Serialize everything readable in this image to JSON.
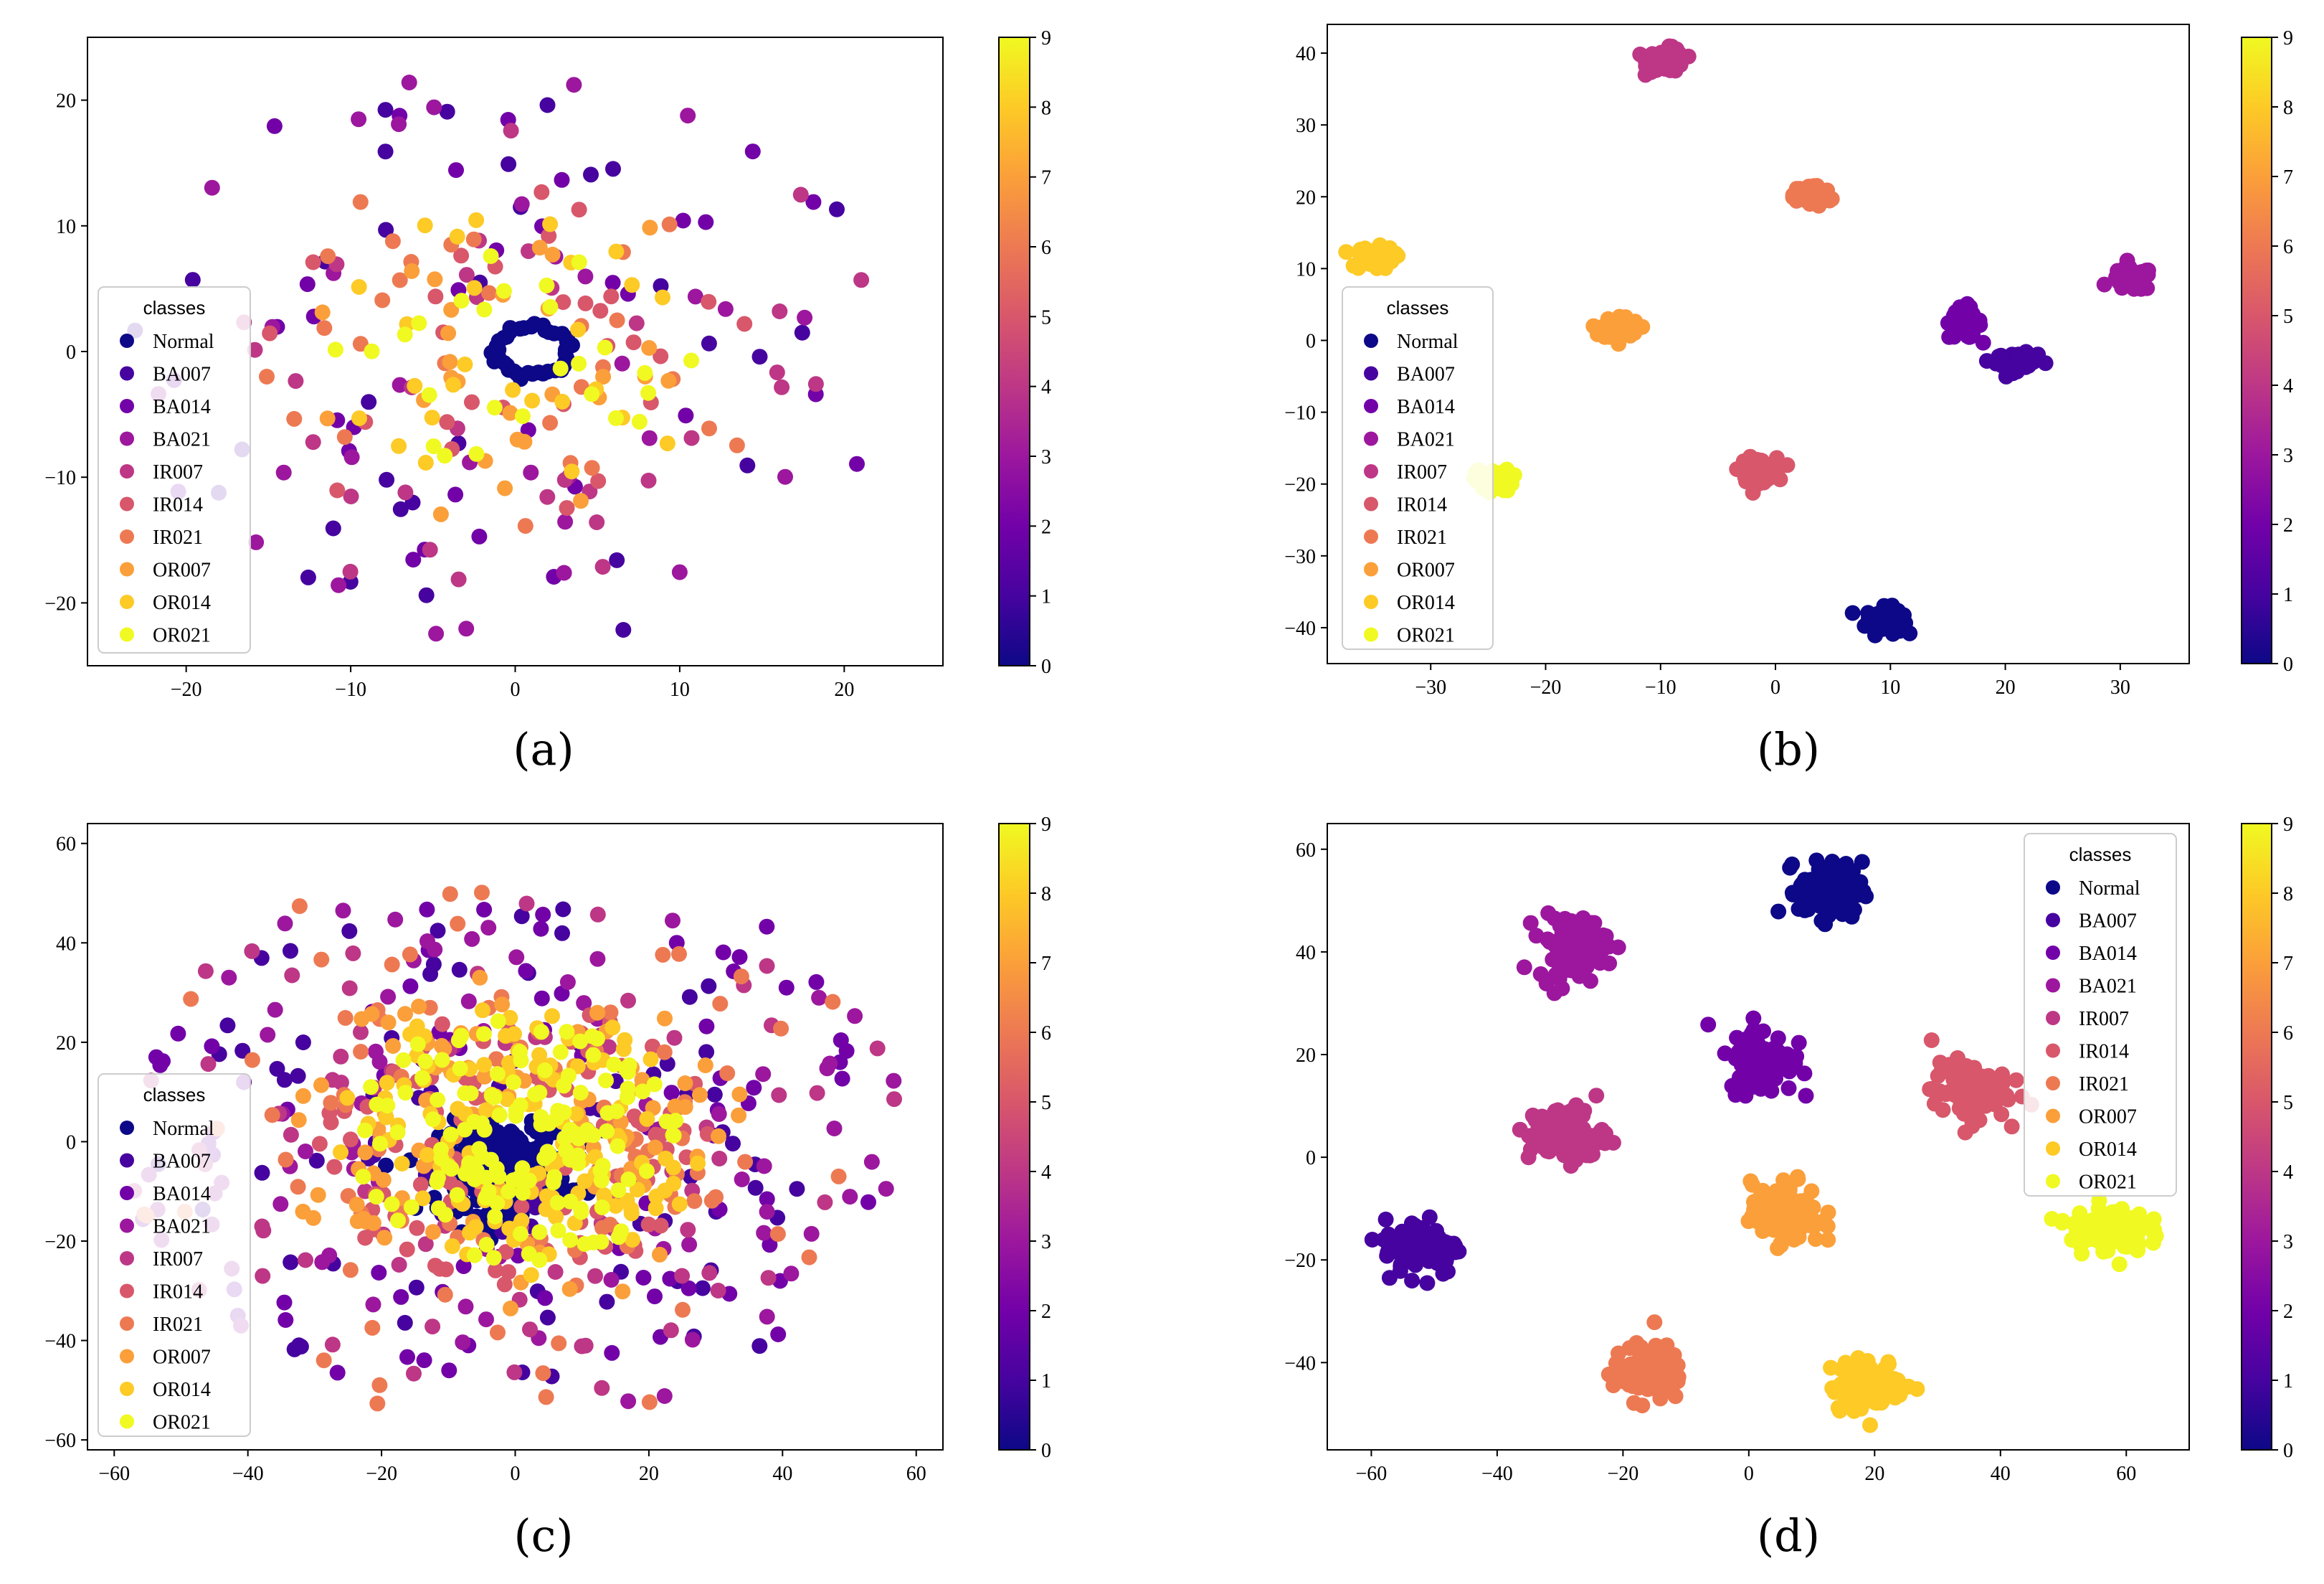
{
  "colors": {
    "cmap": [
      "#0d0887",
      "#46039f",
      "#7201a8",
      "#9c179e",
      "#bd3786",
      "#d8576b",
      "#ed7953",
      "#fb9f3a",
      "#fdca26",
      "#f0f921"
    ],
    "axis": "#000000",
    "background": "#ffffff"
  },
  "legend": {
    "title": "classes",
    "entries": [
      "Normal",
      "BA007",
      "BA014",
      "BA021",
      "IR007",
      "IR014",
      "IR021",
      "OR007",
      "OR014",
      "OR021"
    ]
  },
  "colorbar": {
    "min": 0,
    "max": 9,
    "ticks": [
      "0",
      "1",
      "2",
      "3",
      "4",
      "5",
      "6",
      "7",
      "8",
      "9"
    ]
  },
  "chart_data": [
    {
      "type": "scatter",
      "panel_label": "(a)",
      "title": "",
      "xlabel": "",
      "ylabel": "",
      "xlim": [
        -26,
        26
      ],
      "ylim": [
        -25,
        25
      ],
      "xticks": [
        -20,
        -10,
        0,
        10,
        20
      ],
      "yticks": [
        -20,
        -10,
        0,
        10,
        20
      ],
      "legend_position": "center-left",
      "series": [
        {
          "name": "Normal",
          "class": 0,
          "shape": "ring",
          "cx": 1.0,
          "cy": 0.0,
          "rx": 2.2,
          "ry": 2.0,
          "n": 40
        },
        {
          "name": "BA007",
          "class": 1,
          "shape": "scatter",
          "rmin": 6,
          "rmax": 24,
          "n": 32
        },
        {
          "name": "BA014",
          "class": 2,
          "shape": "scatter",
          "rmin": 6,
          "rmax": 24,
          "n": 32
        },
        {
          "name": "BA021",
          "class": 3,
          "shape": "scatter",
          "rmin": 6,
          "rmax": 24,
          "n": 32
        },
        {
          "name": "IR007",
          "class": 4,
          "shape": "scatter",
          "rmin": 5,
          "rmax": 22,
          "n": 32
        },
        {
          "name": "IR014",
          "class": 5,
          "shape": "scatter",
          "rmin": 4,
          "rmax": 16,
          "n": 28
        },
        {
          "name": "IR021",
          "class": 6,
          "shape": "scatter",
          "rmin": 4,
          "rmax": 16,
          "n": 28
        },
        {
          "name": "OR007",
          "class": 7,
          "shape": "scatter",
          "rmin": 4,
          "rmax": 15,
          "n": 28
        },
        {
          "name": "OR014",
          "class": 8,
          "shape": "scatter",
          "rmin": 3,
          "rmax": 12,
          "n": 26
        },
        {
          "name": "OR021",
          "class": 9,
          "shape": "scatter",
          "rmin": 3,
          "rmax": 11,
          "n": 26
        }
      ]
    },
    {
      "type": "scatter",
      "panel_label": "(b)",
      "title": "",
      "xlabel": "",
      "ylabel": "",
      "xlim": [
        -39,
        36
      ],
      "ylim": [
        -45,
        44
      ],
      "xticks": [
        -30,
        -20,
        -10,
        0,
        10,
        20,
        30
      ],
      "yticks": [
        -40,
        -30,
        -20,
        -10,
        0,
        10,
        20,
        30,
        40
      ],
      "legend_position": "lower-left",
      "series": [
        {
          "name": "Normal",
          "class": 0,
          "shape": "cluster",
          "cx": 9.5,
          "cy": -39,
          "rx": 1.6,
          "ry": 1.8,
          "n": 70
        },
        {
          "name": "BA007",
          "class": 1,
          "shape": "cluster",
          "cx": 21,
          "cy": -3,
          "rx": 1.8,
          "ry": 1.2,
          "n": 70
        },
        {
          "name": "BA014",
          "class": 2,
          "shape": "cluster",
          "cx": 16.5,
          "cy": 2.5,
          "rx": 1.4,
          "ry": 2.2,
          "n": 70
        },
        {
          "name": "BA021",
          "class": 3,
          "shape": "cluster",
          "cx": 31,
          "cy": 8.5,
          "rx": 1.8,
          "ry": 1.6,
          "n": 70
        },
        {
          "name": "IR007",
          "class": 4,
          "shape": "cluster",
          "cx": -9.5,
          "cy": 39,
          "rx": 1.6,
          "ry": 1.6,
          "n": 70
        },
        {
          "name": "IR014",
          "class": 5,
          "shape": "cluster",
          "cx": -1.5,
          "cy": -18,
          "rx": 1.6,
          "ry": 1.6,
          "n": 70
        },
        {
          "name": "IR021",
          "class": 6,
          "shape": "cluster",
          "cx": 3.2,
          "cy": 20.2,
          "rx": 1.6,
          "ry": 1.6,
          "n": 70
        },
        {
          "name": "OR007",
          "class": 7,
          "shape": "cluster",
          "cx": -13.5,
          "cy": 1.8,
          "rx": 1.6,
          "ry": 1.6,
          "n": 70
        },
        {
          "name": "OR014",
          "class": 8,
          "shape": "cluster",
          "cx": -35,
          "cy": 11.5,
          "rx": 1.8,
          "ry": 1.5,
          "n": 70
        },
        {
          "name": "OR021",
          "class": 9,
          "shape": "cluster",
          "cx": -24.5,
          "cy": -19.5,
          "rx": 1.6,
          "ry": 1.5,
          "n": 70
        }
      ]
    },
    {
      "type": "scatter",
      "panel_label": "(c)",
      "title": "",
      "xlabel": "",
      "ylabel": "",
      "xlim": [
        -64,
        64
      ],
      "ylim": [
        -62,
        64
      ],
      "xticks": [
        -60,
        -40,
        -20,
        0,
        20,
        40,
        60
      ],
      "yticks": [
        -60,
        -40,
        -20,
        0,
        20,
        40,
        60
      ],
      "legend_position": "lower-left",
      "series": [
        {
          "name": "Normal",
          "class": 0,
          "shape": "cluster",
          "cx": -1.5,
          "cy": -5.5,
          "rx": 9.5,
          "ry": 9,
          "n": 260
        },
        {
          "name": "BA007",
          "class": 1,
          "shape": "scatter",
          "rmin": 10,
          "rmax": 56,
          "n": 80
        },
        {
          "name": "BA014",
          "class": 2,
          "shape": "scatter",
          "rmin": 20,
          "rmax": 58,
          "n": 80
        },
        {
          "name": "BA021",
          "class": 3,
          "shape": "scatter",
          "rmin": 20,
          "rmax": 58,
          "n": 80
        },
        {
          "name": "IR007",
          "class": 4,
          "shape": "scatter",
          "rmin": 20,
          "rmax": 58,
          "n": 70
        },
        {
          "name": "IR014",
          "class": 5,
          "shape": "scatter",
          "rmin": 8,
          "rmax": 30,
          "n": 110
        },
        {
          "name": "IR021",
          "class": 6,
          "shape": "scatter",
          "rmin": 15,
          "rmax": 58,
          "n": 90
        },
        {
          "name": "OR007",
          "class": 7,
          "shape": "scatter",
          "rmin": 8,
          "rmax": 35,
          "n": 100
        },
        {
          "name": "OR014",
          "class": 8,
          "shape": "scatter",
          "rmin": 6,
          "rmax": 28,
          "n": 120
        },
        {
          "name": "OR021",
          "class": 9,
          "shape": "scatter",
          "rmin": 5,
          "rmax": 25,
          "n": 150
        }
      ]
    },
    {
      "type": "scatter",
      "panel_label": "(d)",
      "title": "",
      "xlabel": "",
      "ylabel": "",
      "xlim": [
        -67,
        70
      ],
      "ylim": [
        -57,
        65
      ],
      "xticks": [
        -60,
        -40,
        -20,
        0,
        20,
        40,
        60
      ],
      "yticks": [
        -40,
        -20,
        0,
        20,
        40,
        60
      ],
      "legend_position": "upper-right",
      "series": [
        {
          "name": "Normal",
          "class": 0,
          "shape": "cluster",
          "cx": 13,
          "cy": 52,
          "rx": 5,
          "ry": 5.5,
          "n": 110
        },
        {
          "name": "BA007",
          "class": 1,
          "shape": "cluster",
          "cx": -52,
          "cy": -17.5,
          "rx": 6,
          "ry": 5.5,
          "n": 110
        },
        {
          "name": "BA014",
          "class": 2,
          "shape": "cluster",
          "cx": 2,
          "cy": 19,
          "rx": 5,
          "ry": 6.5,
          "n": 110
        },
        {
          "name": "BA021",
          "class": 3,
          "shape": "cluster",
          "cx": -28,
          "cy": 41,
          "rx": 5.5,
          "ry": 6,
          "n": 110
        },
        {
          "name": "IR007",
          "class": 4,
          "shape": "cluster",
          "cx": -29,
          "cy": 4.5,
          "rx": 6,
          "ry": 5.5,
          "n": 110
        },
        {
          "name": "IR014",
          "class": 5,
          "shape": "cluster",
          "cx": 35,
          "cy": 13,
          "rx": 6,
          "ry": 5.5,
          "n": 110
        },
        {
          "name": "IR021",
          "class": 6,
          "shape": "cluster",
          "cx": -16,
          "cy": -42,
          "rx": 5.5,
          "ry": 5.5,
          "n": 110
        },
        {
          "name": "OR007",
          "class": 7,
          "shape": "cluster",
          "cx": 6,
          "cy": -11,
          "rx": 5.5,
          "ry": 6,
          "n": 110
        },
        {
          "name": "OR014",
          "class": 8,
          "shape": "cluster",
          "cx": 19,
          "cy": -44.5,
          "rx": 6,
          "ry": 5,
          "n": 110
        },
        {
          "name": "OR021",
          "class": 9,
          "shape": "cluster",
          "cx": 57,
          "cy": -14,
          "rx": 6,
          "ry": 4.5,
          "n": 110
        }
      ]
    }
  ]
}
